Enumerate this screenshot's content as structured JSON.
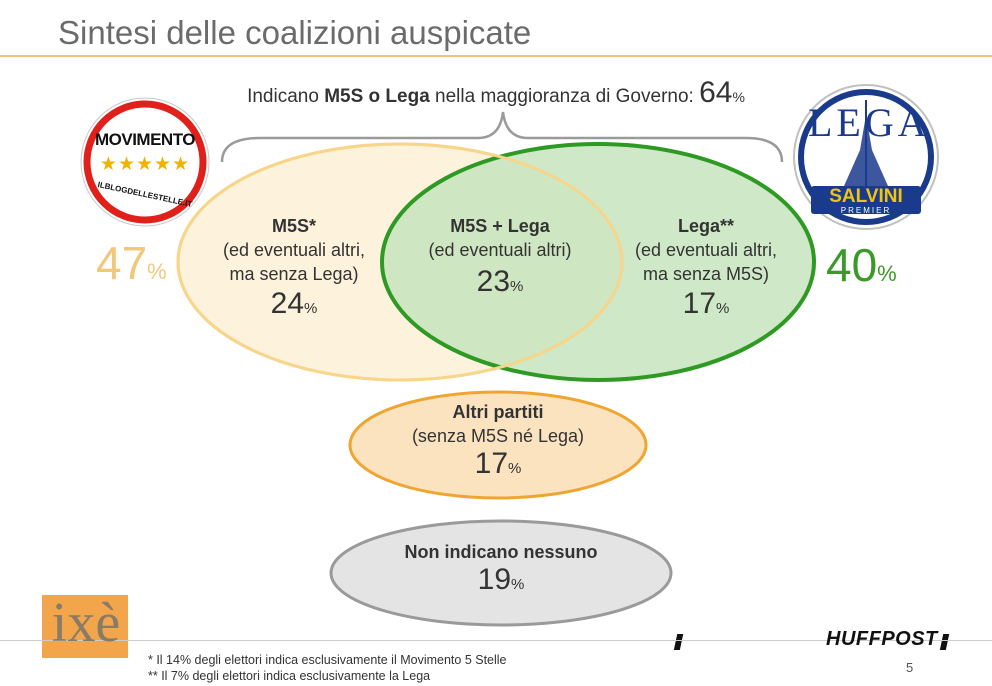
{
  "title": "Sintesi delle coalizioni auspicate",
  "top_label": {
    "prefix": "Indicano ",
    "bold": "M5S o Lega",
    "suffix": " nella maggioranza di Governo: ",
    "value": "64",
    "unit": "%"
  },
  "left_logo": {
    "top": "MOVIMENTO",
    "stars": "★★★★★",
    "bottom": "ILBLOGDELLESTELLE.IT"
  },
  "right_logo": {
    "word": "LEGA",
    "banner": "SALVINI",
    "sub": "PREMIER"
  },
  "totals": {
    "m5s": {
      "value": "47",
      "unit": "%"
    },
    "lega": {
      "value": "40",
      "unit": "%"
    }
  },
  "groups": {
    "m5s_only": {
      "title": "M5S*",
      "line1": "(ed eventuali altri,",
      "line2": "ma senza Lega)",
      "value": "24",
      "unit": "%"
    },
    "both": {
      "title": "M5S + Lega",
      "line1": "(ed eventuali altri)",
      "value": "23",
      "unit": "%"
    },
    "lega_only": {
      "title": "Lega**",
      "line1": "(ed eventuali altri,",
      "line2": "ma senza M5S)",
      "value": "17",
      "unit": "%"
    },
    "altri": {
      "title": "Altri partiti",
      "line1": "(senza M5S né Lega)",
      "value": "17",
      "unit": "%"
    },
    "nessuno": {
      "title": "Non indicano nessuno",
      "value": "19",
      "unit": "%"
    }
  },
  "footnotes": [
    "* Il 14% degli elettori indica esclusivamente il Movimento 5 Stelle",
    "** Il 7% degli elettori indica esclusivamente la Lega"
  ],
  "ixe_logo": "ixè",
  "huffpost_logo": "HUFFPOST",
  "page_number": "5",
  "colors": {
    "m5s_fill": "#fdf2dc",
    "m5s_stroke": "#f7d58a",
    "lega_fill": "#cfe8c6",
    "lega_stroke": "#2e9a23",
    "altri_fill": "#fbe3bf",
    "altri_stroke": "#f0a531",
    "nessuno_fill": "#e4e4e4",
    "nessuno_stroke": "#9a9a9a"
  }
}
